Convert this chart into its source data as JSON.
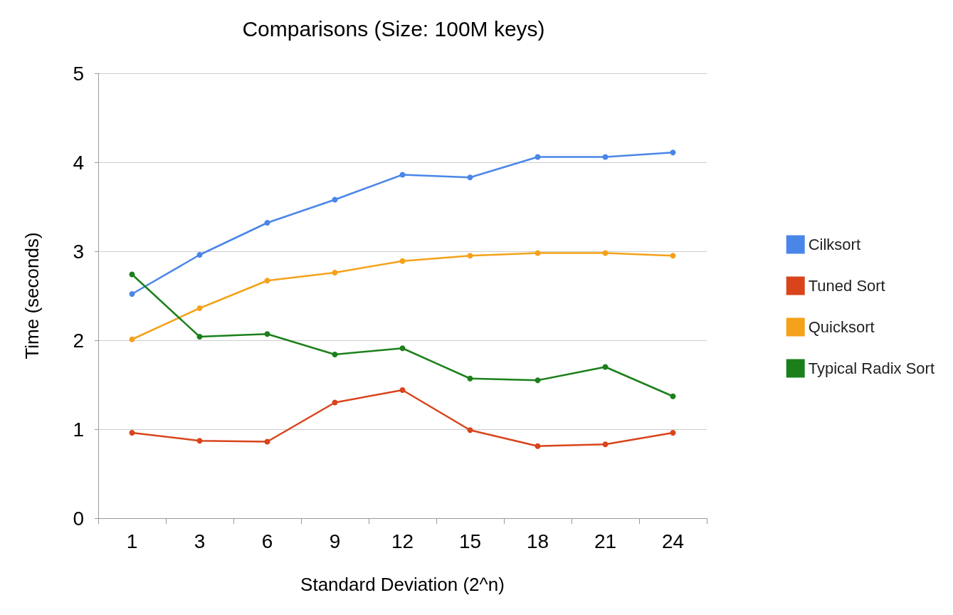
{
  "chart_data": {
    "type": "line",
    "title": "Comparisons (Size: 100M keys)",
    "xlabel": "Standard Deviation (2^n)",
    "ylabel": "Time (seconds)",
    "categories": [
      "1",
      "3",
      "6",
      "9",
      "12",
      "15",
      "18",
      "21",
      "24"
    ],
    "series": [
      {
        "name": "Cilksort",
        "color": "#4a86e8",
        "values": [
          2.52,
          2.96,
          3.32,
          3.58,
          3.86,
          3.83,
          4.06,
          4.06,
          4.11
        ]
      },
      {
        "name": "Tuned Sort",
        "color": "#d9441b",
        "values": [
          0.96,
          0.87,
          0.86,
          1.3,
          1.44,
          0.99,
          0.81,
          0.83,
          0.96
        ]
      },
      {
        "name": "Quicksort",
        "color": "#f4a21a",
        "values": [
          2.01,
          2.36,
          2.67,
          2.76,
          2.89,
          2.95,
          2.98,
          2.98,
          2.95
        ]
      },
      {
        "name": "Typical Radix Sort",
        "color": "#1b801b",
        "values": [
          2.74,
          2.04,
          2.07,
          1.84,
          1.91,
          1.57,
          1.55,
          1.7,
          1.37
        ]
      }
    ],
    "ylim": [
      0,
      5
    ],
    "yticks": [
      0,
      1,
      2,
      3,
      4,
      5
    ],
    "grid": "y",
    "legend": "right",
    "marker": "circle",
    "line_style": "solid"
  }
}
